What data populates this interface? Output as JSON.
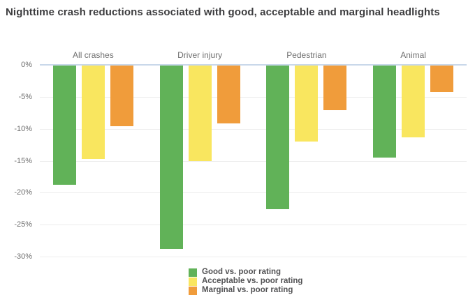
{
  "title": "Nighttime crash reductions associated with good, acceptable and marginal headlights",
  "chart_data": {
    "type": "bar",
    "orientation": "vertical",
    "title": "Nighttime crash reductions associated with good, acceptable and marginal headlights",
    "categories": [
      "All crashes",
      "Driver injury",
      "Pedestrian",
      "Animal"
    ],
    "series": [
      {
        "name": "Good vs. poor rating",
        "color": "#61b258",
        "values": [
          -18.8,
          -28.8,
          -22.6,
          -14.5
        ]
      },
      {
        "name": "Acceptable vs. poor rating",
        "color": "#f9e65f",
        "values": [
          -14.7,
          -15.0,
          -12.0,
          -11.3
        ]
      },
      {
        "name": "Marginal vs. poor rating",
        "color": "#f09c3b",
        "values": [
          -9.6,
          -9.2,
          -7.1,
          -4.2
        ]
      }
    ],
    "xlabel": "",
    "ylabel": "",
    "ylim": [
      -30,
      0
    ],
    "y_ticks": [
      {
        "label": "0%",
        "value": 0
      },
      {
        "label": "-5%",
        "value": -5
      },
      {
        "label": "-10%",
        "value": -10
      },
      {
        "label": "-15%",
        "value": -15
      },
      {
        "label": "-20%",
        "value": -20
      },
      {
        "label": "-25%",
        "value": -25
      },
      {
        "label": "-30%",
        "value": -30
      }
    ],
    "grid": true,
    "legend_position": "bottom-center",
    "category_labels_position": "top"
  },
  "colors": {
    "background": "#ffffff",
    "zero_line": "#c9d8ea",
    "gridline": "#ededed",
    "tick_label": "#6f6f6f",
    "category_label": "#6f6f6f",
    "title_text": "#3d3d3f",
    "legend_text": "#525254"
  }
}
